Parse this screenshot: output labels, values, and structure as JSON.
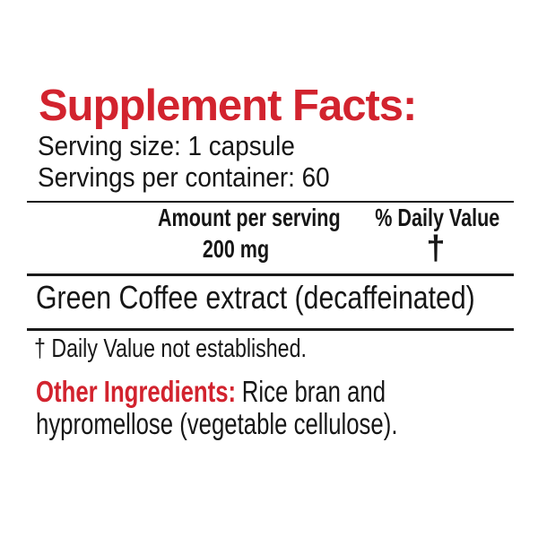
{
  "label": {
    "title": "Supplement Facts:",
    "serving_size": "Serving size: 1 capsule",
    "servings_per_container": "Servings per container: 60",
    "table": {
      "amount_header": "Amount per serving",
      "daily_value_header": "% Daily Value",
      "rows": [
        {
          "ingredient": "Green Coffee extract (decaffeinated)",
          "amount": "200 mg",
          "daily_value": "†"
        }
      ]
    },
    "footnote": "† Daily Value not established.",
    "other_ingredients": {
      "label": "Other Ingredients:",
      "text_line_1": "Rice bran and",
      "text_line_2": "hypromellose (vegetable cellulose)."
    }
  },
  "colors": {
    "accent_red": "#D2232E",
    "text_black": "#161616",
    "rule_black": "#1A1A1A",
    "background": "#FFFFFF"
  }
}
